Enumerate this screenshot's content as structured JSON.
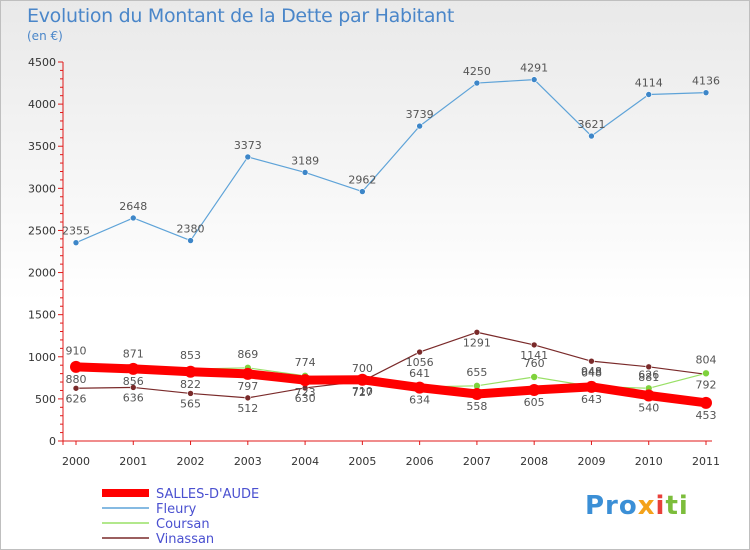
{
  "header": {
    "title": "Evolution du Montant de la Dette par Habitant",
    "subtitle": "(en €)"
  },
  "logo": {
    "text": "Proxiti",
    "parts": [
      "Pro",
      "x",
      "i",
      "ti"
    ]
  },
  "chart_data": {
    "type": "line",
    "title": "Evolution du Montant de la Dette par Habitant",
    "ylabel": "(en €)",
    "xlabel": "",
    "x": [
      "2000",
      "2001",
      "2002",
      "2003",
      "2004",
      "2005",
      "2006",
      "2007",
      "2008",
      "2009",
      "2010",
      "2011"
    ],
    "ylim": [
      0,
      4500
    ],
    "yticks": [
      0,
      500,
      1000,
      1500,
      2000,
      2500,
      3000,
      3500,
      4000,
      4500
    ],
    "grid": false,
    "legend": "bottom-left",
    "series": [
      {
        "name": "SALLES-D'AUDE",
        "color": "#ff0000",
        "values": [
          880,
          856,
          822,
          797,
          723,
          727,
          634,
          558,
          605,
          643,
          540,
          453
        ]
      },
      {
        "name": "Fleury",
        "color": "#5ea3d8",
        "values": [
          2355,
          2648,
          2380,
          3373,
          3189,
          2962,
          3739,
          4250,
          4291,
          3621,
          4114,
          4136
        ]
      },
      {
        "name": "Coursan",
        "color": "#99e066",
        "values": [
          910,
          871,
          853,
          869,
          774,
          700,
          641,
          655,
          760,
          648,
          626,
          804
        ]
      },
      {
        "name": "Vinassan",
        "color": "#7a2a2a",
        "values": [
          626,
          636,
          565,
          512,
          630,
          710,
          1056,
          1291,
          1141,
          948,
          881,
          792
        ]
      }
    ]
  }
}
